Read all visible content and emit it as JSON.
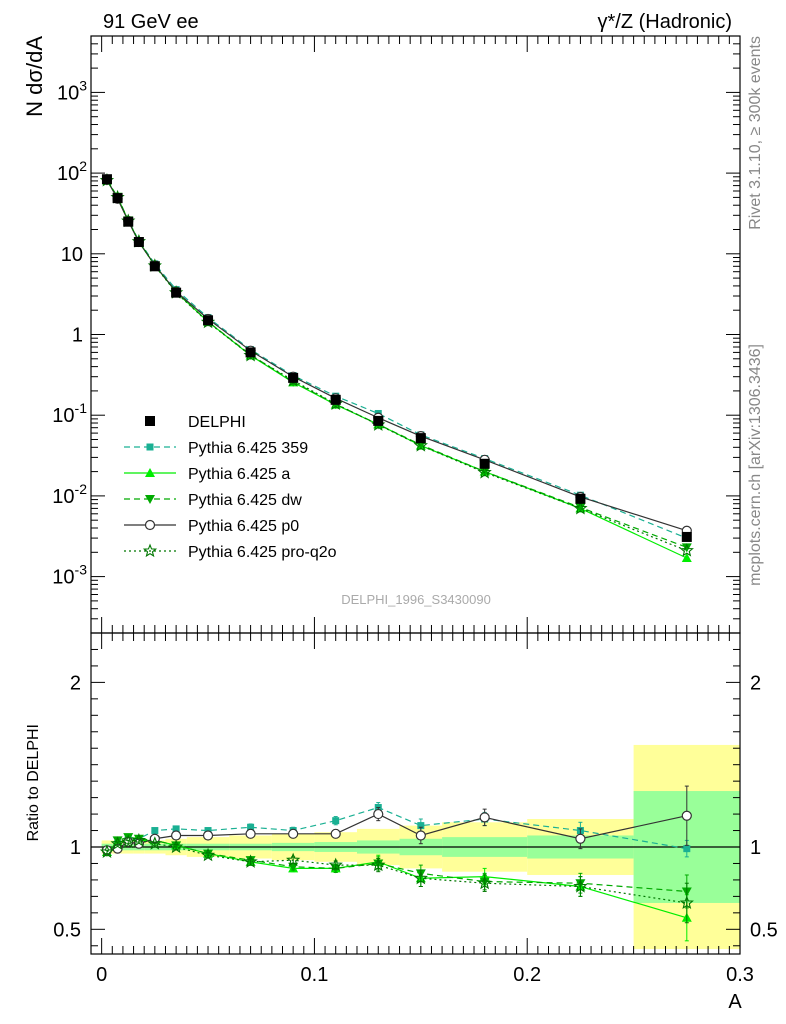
{
  "header": {
    "left": "91 GeV ee",
    "right": "γ*/Z (Hadronic)"
  },
  "side_labels": {
    "rivet": "Rivet 3.1.10, ≥ 300k events",
    "mcplots": "mcplots.cern.ch [arXiv:1306.3436]"
  },
  "watermark": "DELPHI_1996_S3430090",
  "chart_data": [
    {
      "type": "scatter",
      "panel": "main",
      "ylabel": "N dσ/dA",
      "yscale": "log",
      "ylim": [
        0.0002,
        5000
      ],
      "xlim": [
        -0.005,
        0.3
      ],
      "ytick_labels": [
        "10^-3",
        "10^-2",
        "10^-1",
        "1",
        "10",
        "10^2",
        "10^3"
      ],
      "grid": false,
      "legend_position": "bottom-left",
      "series": [
        {
          "name": "DELPHI",
          "color": "#000000",
          "marker": "square",
          "x": [
            0.0025,
            0.0075,
            0.0125,
            0.0175,
            0.025,
            0.035,
            0.05,
            0.07,
            0.09,
            0.11,
            0.13,
            0.15,
            0.18,
            0.225,
            0.275
          ],
          "y": [
            84,
            49,
            25,
            14,
            7.0,
            3.3,
            1.5,
            0.6,
            0.29,
            0.155,
            0.085,
            0.052,
            0.025,
            0.0092,
            0.0031
          ]
        },
        {
          "name": "Pythia 6.425 359",
          "color": "#1ab093",
          "marker": "square-small",
          "line": "dashed",
          "x": [
            0.0025,
            0.0075,
            0.0125,
            0.0175,
            0.025,
            0.035,
            0.05,
            0.07,
            0.09,
            0.11,
            0.13,
            0.15,
            0.18,
            0.225,
            0.275
          ],
          "y": [
            82,
            50,
            26,
            14.5,
            7.5,
            3.6,
            1.62,
            0.65,
            0.31,
            0.172,
            0.105,
            0.057,
            0.029,
            0.0102,
            0.003
          ]
        },
        {
          "name": "Pythia 6.425 a",
          "color": "#00ee00",
          "marker": "triangle-up",
          "line": "solid",
          "x": [
            0.0025,
            0.0075,
            0.0125,
            0.0175,
            0.025,
            0.035,
            0.05,
            0.07,
            0.09,
            0.11,
            0.13,
            0.15,
            0.18,
            0.225,
            0.275
          ],
          "y": [
            81,
            50,
            26,
            14.2,
            7.2,
            3.35,
            1.44,
            0.55,
            0.255,
            0.135,
            0.077,
            0.042,
            0.02,
            0.007,
            0.0017
          ]
        },
        {
          "name": "Pythia 6.425 dw",
          "color": "#00aa00",
          "marker": "triangle-down",
          "line": "dashed",
          "x": [
            0.0025,
            0.0075,
            0.0125,
            0.0175,
            0.025,
            0.035,
            0.05,
            0.07,
            0.09,
            0.11,
            0.13,
            0.15,
            0.18,
            0.225,
            0.275
          ],
          "y": [
            81,
            51,
            26,
            14.2,
            7.2,
            3.35,
            1.44,
            0.56,
            0.26,
            0.137,
            0.077,
            0.043,
            0.02,
            0.0072,
            0.0023
          ]
        },
        {
          "name": "Pythia 6.425 p0",
          "color": "#333333",
          "marker": "circle-open",
          "line": "solid",
          "x": [
            0.0025,
            0.0075,
            0.0125,
            0.0175,
            0.025,
            0.035,
            0.05,
            0.07,
            0.09,
            0.11,
            0.13,
            0.15,
            0.18,
            0.225,
            0.275
          ],
          "y": [
            82,
            48,
            25.5,
            14,
            7.2,
            3.4,
            1.56,
            0.63,
            0.3,
            0.162,
            0.093,
            0.055,
            0.028,
            0.0097,
            0.0037
          ]
        },
        {
          "name": "Pythia 6.425 pro-q2o",
          "color": "#007700",
          "marker": "star-open",
          "line": "dotted",
          "x": [
            0.0025,
            0.0075,
            0.0125,
            0.0175,
            0.025,
            0.035,
            0.05,
            0.07,
            0.09,
            0.11,
            0.13,
            0.15,
            0.18,
            0.225,
            0.275
          ],
          "y": [
            81,
            50,
            25.5,
            14.2,
            7.1,
            3.3,
            1.42,
            0.55,
            0.27,
            0.138,
            0.076,
            0.042,
            0.0195,
            0.007,
            0.0021
          ]
        }
      ]
    },
    {
      "type": "scatter",
      "panel": "ratio",
      "xlabel": "A",
      "ylabel": "Ratio to DELPHI",
      "ylim": [
        0.35,
        2.3
      ],
      "xlim": [
        -0.005,
        0.3
      ],
      "xticks": [
        0,
        0.1,
        0.2,
        0.3
      ],
      "yticks": [
        0.5,
        1,
        2
      ],
      "reference_line": 1,
      "bands": {
        "edges": [
          0.0,
          0.005,
          0.01,
          0.015,
          0.02,
          0.03,
          0.04,
          0.06,
          0.08,
          0.1,
          0.12,
          0.14,
          0.16,
          0.2,
          0.25,
          0.3
        ],
        "inner_color": "#99ff99",
        "outer_color": "#ffff99",
        "inner": [
          0.02,
          0.02,
          0.02,
          0.02,
          0.02,
          0.02,
          0.02,
          0.02,
          0.025,
          0.03,
          0.04,
          0.05,
          0.06,
          0.07,
          0.34
        ],
        "outer": [
          0.04,
          0.04,
          0.04,
          0.04,
          0.04,
          0.05,
          0.06,
          0.07,
          0.08,
          0.09,
          0.11,
          0.13,
          0.15,
          0.17,
          0.62
        ]
      },
      "x": [
        0.0025,
        0.0075,
        0.0125,
        0.0175,
        0.025,
        0.035,
        0.05,
        0.07,
        0.09,
        0.11,
        0.13,
        0.15,
        0.18,
        0.225,
        0.275
      ],
      "series": [
        {
          "name": "Pythia 6.425 359",
          "values": [
            0.97,
            1.02,
            1.05,
            1.05,
            1.1,
            1.11,
            1.1,
            1.12,
            1.1,
            1.16,
            1.24,
            1.13,
            1.17,
            1.1,
            0.99
          ]
        },
        {
          "name": "Pythia 6.425 a",
          "values": [
            0.97,
            1.03,
            1.04,
            1.04,
            1.04,
            1.01,
            0.96,
            0.91,
            0.87,
            0.87,
            0.91,
            0.81,
            0.82,
            0.76,
            0.57
          ]
        },
        {
          "name": "Pythia 6.425 dw",
          "values": [
            0.97,
            1.04,
            1.06,
            1.05,
            1.04,
            1.01,
            0.96,
            0.92,
            0.88,
            0.87,
            0.9,
            0.84,
            0.79,
            0.78,
            0.73
          ]
        },
        {
          "name": "Pythia 6.425 p0",
          "values": [
            0.98,
            0.99,
            1.03,
            1.02,
            1.05,
            1.07,
            1.07,
            1.08,
            1.08,
            1.08,
            1.2,
            1.07,
            1.18,
            1.05,
            1.19
          ]
        },
        {
          "name": "Pythia 6.425 pro-q2o",
          "values": [
            0.97,
            1.02,
            1.03,
            1.04,
            1.02,
            1.0,
            0.95,
            0.91,
            0.92,
            0.89,
            0.89,
            0.81,
            0.78,
            0.76,
            0.66
          ]
        }
      ],
      "errors": [
        [
          0.01,
          0.01,
          0.01,
          0.01,
          0.01,
          0.015,
          0.015,
          0.02,
          0.02,
          0.025,
          0.03,
          0.04,
          0.04,
          0.05,
          0.05
        ],
        [
          0.01,
          0.01,
          0.01,
          0.01,
          0.01,
          0.015,
          0.015,
          0.02,
          0.02,
          0.025,
          0.04,
          0.05,
          0.05,
          0.06,
          0.14
        ],
        [
          0.01,
          0.01,
          0.01,
          0.01,
          0.01,
          0.015,
          0.015,
          0.02,
          0.02,
          0.025,
          0.04,
          0.05,
          0.05,
          0.06,
          0.1
        ],
        [
          0.01,
          0.01,
          0.01,
          0.01,
          0.01,
          0.015,
          0.015,
          0.02,
          0.02,
          0.025,
          0.04,
          0.05,
          0.05,
          0.06,
          0.18
        ],
        [
          0.01,
          0.01,
          0.01,
          0.01,
          0.01,
          0.015,
          0.015,
          0.02,
          0.02,
          0.025,
          0.04,
          0.05,
          0.05,
          0.06,
          0.12
        ]
      ]
    }
  ]
}
